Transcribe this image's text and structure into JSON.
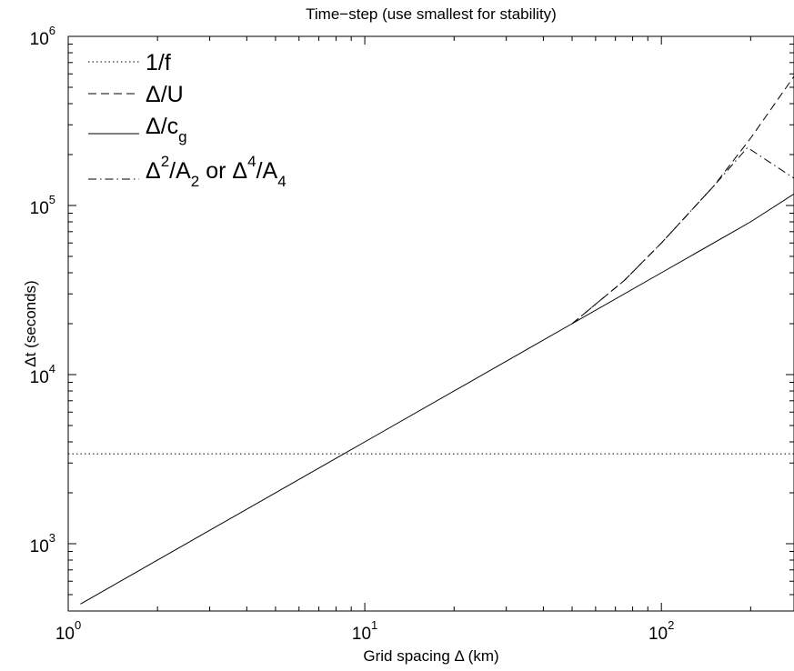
{
  "chart_data": {
    "type": "line",
    "title": "Time−step (use smallest for stability)",
    "xlabel": "Grid spacing Δ (km)",
    "ylabel": "Δt (seconds)",
    "xscale": "log",
    "yscale": "log",
    "xlim": [
      1,
      280
    ],
    "ylim": [
      400,
      1000000
    ],
    "grid": false,
    "legend_position": "top-left",
    "x_ticks": [
      {
        "base": "10",
        "exp": "0",
        "value": 1
      },
      {
        "base": "10",
        "exp": "1",
        "value": 10
      },
      {
        "base": "10",
        "exp": "2",
        "value": 100
      }
    ],
    "y_ticks": [
      {
        "base": "10",
        "exp": "3",
        "value": 1000
      },
      {
        "base": "10",
        "exp": "4",
        "value": 10000
      },
      {
        "base": "10",
        "exp": "5",
        "value": 100000
      },
      {
        "base": "10",
        "exp": "6",
        "value": 1000000
      }
    ],
    "series": [
      {
        "name": "1/f",
        "legend": {
          "main": "1/f"
        },
        "style": "dotted",
        "x": [
          1,
          280
        ],
        "y": [
          3400,
          3400
        ]
      },
      {
        "name": "Δ/U",
        "legend": {
          "main": "Δ/U"
        },
        "style": "dashed",
        "x": [
          50,
          75,
          100,
          150,
          200,
          280
        ],
        "y": [
          20000,
          36000,
          60000,
          130000,
          250000,
          580000
        ]
      },
      {
        "name": "Δ/c_g",
        "legend": {
          "main": "Δ/c",
          "sub": "g"
        },
        "style": "solid",
        "x": [
          1.1,
          10,
          50,
          100,
          200,
          280
        ],
        "y": [
          440,
          4000,
          20000,
          40000,
          80000,
          117000
        ]
      },
      {
        "name": "Δ²/A₂ or Δ⁴/A₄",
        "legend": {
          "p1": "Δ",
          "sup1": "2",
          "p2": "/A",
          "sub1": "2",
          "p3": " or Δ",
          "sup2": "4",
          "p4": "/A",
          "sub2": "4"
        },
        "style": "dashdot",
        "x": [
          50,
          75,
          100,
          150,
          195,
          280
        ],
        "y": [
          20000,
          36000,
          60000,
          130000,
          220000,
          145000
        ]
      }
    ]
  }
}
